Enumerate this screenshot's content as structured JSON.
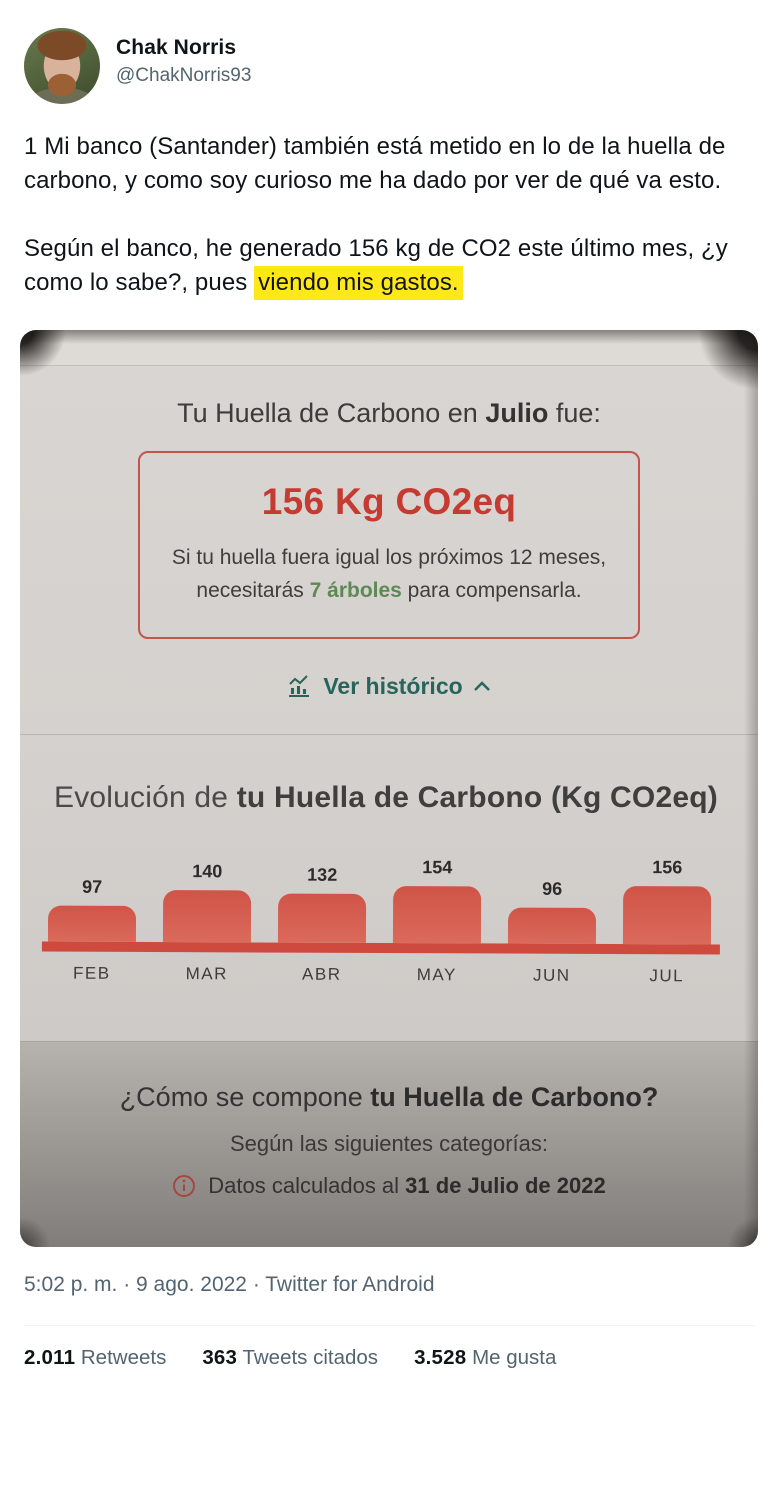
{
  "author": {
    "name": "Chak Norris",
    "handle": "@ChakNorris93"
  },
  "tweet": {
    "p1": "1 Mi banco (Santander) también está metido en lo de la huella de carbono, y como soy curioso me ha dado por ver de qué va esto.",
    "p2_before": "Según el banco, he generado 156 kg de CO2 este último mes, ¿y como lo sabe?, pues ",
    "p2_highlight": "viendo mis gastos."
  },
  "card": {
    "header_prefix": "Tu Huella de Carbono en ",
    "header_month": "Julio",
    "header_suffix": " fue:",
    "amount": "156 Kg CO2eq",
    "forecast_line1": "Si tu huella fuera igual los próximos 12 meses,",
    "forecast_before": "necesitarás ",
    "forecast_trees": "7 árboles",
    "forecast_after": " para compensarla.",
    "ver_historico_label": "Ver histórico",
    "evolution_prefix": "Evolución de ",
    "evolution_bold": "tu Huella de Carbono (Kg CO2eq)",
    "compose_prefix": "¿Cómo se compone ",
    "compose_bold": "tu Huella de Carbono?",
    "categories_line": "Según las siguientes categorías:",
    "data_before": "Datos calculados al ",
    "data_bold": "31 de Julio de 2022"
  },
  "chart_data": {
    "type": "bar",
    "categories": [
      "FEB",
      "MAR",
      "ABR",
      "MAY",
      "JUN",
      "JUL"
    ],
    "values": [
      97,
      140,
      132,
      154,
      96,
      156
    ],
    "title": "Evolución de tu Huella de Carbono (Kg CO2eq)",
    "xlabel": "",
    "ylabel": "Kg CO2eq",
    "ylim": [
      0,
      160
    ],
    "grid": false,
    "legend": false,
    "value_labels": true,
    "bar_color": "#d2564a",
    "baseline_color": "#ce4a3e"
  },
  "icons": {
    "ver_historico_icon": "bar-chart-icon",
    "caret_icon": "chevron-up-icon",
    "info_icon": "info-circle-icon"
  },
  "colors": {
    "accent_red": "#c53a31",
    "box_border_red": "#c0564c",
    "trees_green": "#5d8a52",
    "link_teal": "#27655c",
    "highlight_yellow": "#ffe81a",
    "tweet_text": "#0f1419",
    "muted_gray": "#536471"
  },
  "footer": {
    "timestamp": "5:02 p. m. · 9 ago. 2022 · Twitter for Android",
    "stats": [
      {
        "value": "2.011",
        "label": "Retweets"
      },
      {
        "value": "363",
        "label": "Tweets citados"
      },
      {
        "value": "3.528",
        "label": "Me gusta"
      }
    ]
  }
}
